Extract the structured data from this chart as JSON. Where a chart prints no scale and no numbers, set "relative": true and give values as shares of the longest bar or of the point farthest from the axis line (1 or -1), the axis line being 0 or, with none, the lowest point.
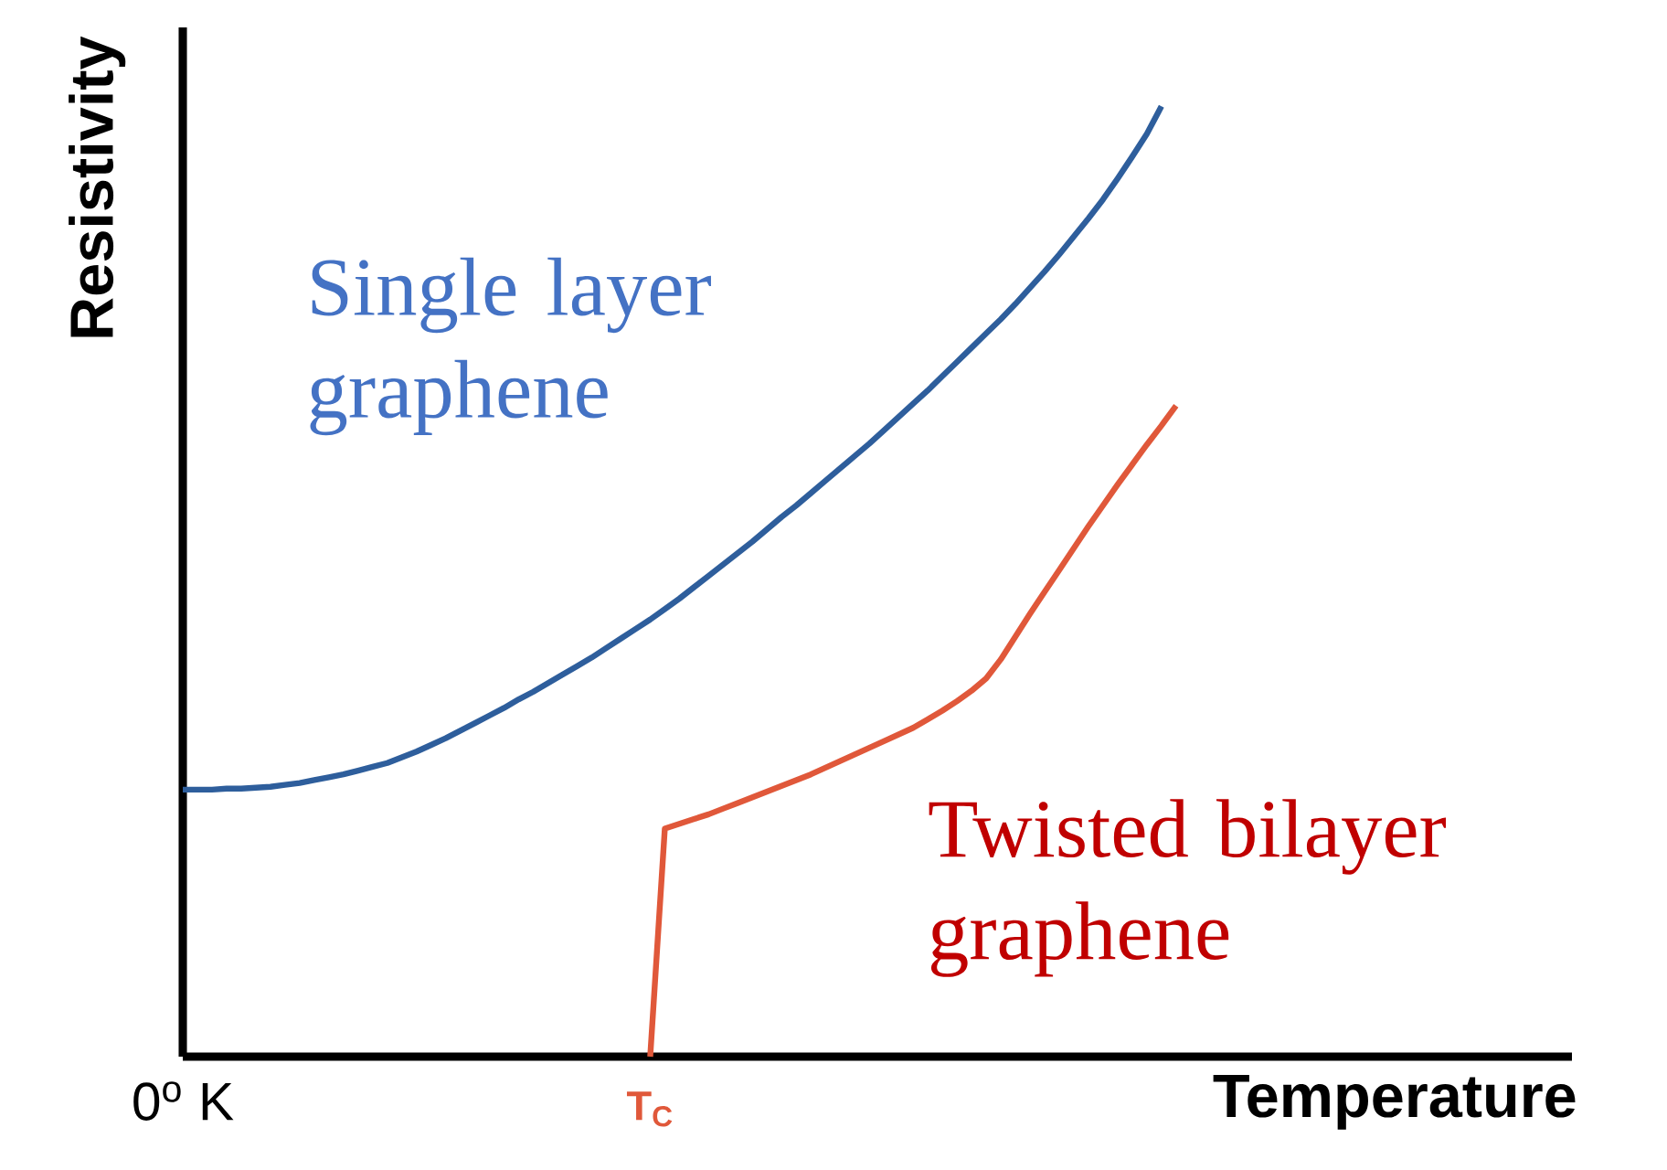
{
  "chart_data": {
    "type": "line",
    "relative": true,
    "xlabel": "Temperature",
    "ylabel": "Resistivity",
    "categories": [
      "0$^{o}$ K",
      null,
      null,
      null,
      null,
      null,
      null,
      null,
      null,
      null,
      null,
      null,
      null,
      null,
      null,
      null,
      null,
      null,
      null,
      null,
      null,
      null,
      null,
      null,
      null,
      null,
      null,
      null,
      null,
      null,
      null,
      null,
      "T$_{C}$",
      null,
      null,
      null,
      null,
      null,
      null,
      null,
      null,
      null,
      null,
      null,
      null,
      null,
      null,
      null,
      null,
      null,
      null,
      null,
      null,
      null,
      null,
      null,
      null,
      null,
      null,
      null,
      null,
      null,
      null,
      null,
      null,
      null,
      null,
      null,
      null
    ],
    "series": [
      {
        "name": "Single layer graphene",
        "color": "#2e5e9c",
        "values": [
          0.281,
          0.281,
          0.281,
          0.282,
          0.282,
          0.283,
          0.284,
          0.286,
          0.288,
          0.291,
          0.294,
          0.297,
          0.301,
          0.305,
          0.309,
          0.315,
          0.321,
          0.328,
          0.335,
          0.343,
          0.351,
          0.359,
          0.367,
          0.376,
          0.384,
          0.393,
          0.402,
          0.411,
          0.42,
          0.43,
          0.44,
          0.45,
          0.46,
          0.471,
          0.482,
          0.494,
          0.506,
          0.518,
          0.53,
          0.542,
          0.555,
          0.568,
          0.58,
          0.593,
          0.606,
          0.619,
          0.632,
          0.645,
          0.659,
          0.673,
          0.687,
          0.701,
          0.716,
          0.731,
          0.746,
          0.761,
          0.776,
          0.792,
          0.809,
          0.826,
          0.844,
          0.863,
          0.882,
          0.902,
          0.924,
          0.947,
          0.971,
          1,
          null
        ]
      },
      {
        "name": "Twisted bilayer graphene",
        "color": "#e0583a",
        "values": [
          null,
          null,
          null,
          null,
          null,
          null,
          null,
          null,
          null,
          null,
          null,
          null,
          null,
          null,
          null,
          null,
          null,
          null,
          null,
          null,
          null,
          null,
          null,
          null,
          null,
          null,
          null,
          null,
          null,
          null,
          null,
          null,
          0,
          0.24,
          0.245,
          0.25,
          0.255,
          0.261,
          0.267,
          0.273,
          0.279,
          0.285,
          0.291,
          0.297,
          0.304,
          0.311,
          0.318,
          0.325,
          0.332,
          0.339,
          0.346,
          0.355,
          0.364,
          0.374,
          0.385,
          0.398,
          0.418,
          0.442,
          0.466,
          0.489,
          0.512,
          0.535,
          0.558,
          0.58,
          0.602,
          0.623,
          0.644,
          0.664,
          0.685
        ]
      }
    ]
  }
}
